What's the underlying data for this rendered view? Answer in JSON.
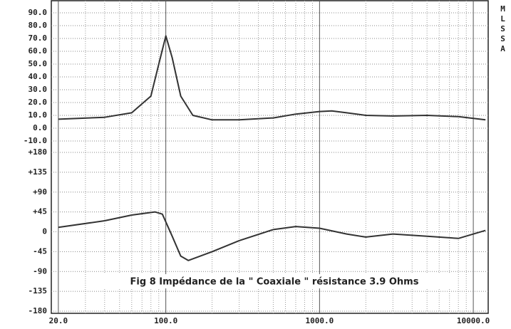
{
  "chart_data": [
    {
      "type": "line",
      "log_x": true,
      "grid": true,
      "side_label": "MLSSA",
      "xlim": [
        18,
        12500
      ],
      "xticks": [
        20,
        100,
        1000,
        10000
      ],
      "xminorticks": [
        30,
        40,
        50,
        60,
        70,
        80,
        90,
        200,
        300,
        400,
        500,
        600,
        700,
        800,
        900,
        2000,
        3000,
        4000,
        5000,
        6000,
        7000,
        8000,
        9000
      ],
      "ylim": [
        -10,
        100
      ],
      "yticks": [
        {
          "value": 90,
          "label": "90.0"
        },
        {
          "value": 80,
          "label": "80.0"
        },
        {
          "value": 70,
          "label": "70.0"
        },
        {
          "value": 60,
          "label": "60.0"
        },
        {
          "value": 50,
          "label": "50.0"
        },
        {
          "value": 40,
          "label": "40.0"
        },
        {
          "value": 30,
          "label": "30.0"
        },
        {
          "value": 20,
          "label": "20.0"
        },
        {
          "value": 10,
          "label": "10.0"
        },
        {
          "value": 0,
          "label": "0.0"
        },
        {
          "value": -10,
          "label": "-10.0"
        }
      ],
      "x": [
        20,
        40,
        60,
        80,
        90,
        100,
        110,
        125,
        150,
        200,
        300,
        500,
        700,
        1000,
        1200,
        1500,
        2000,
        3000,
        5000,
        8000,
        12000
      ],
      "series": [
        {
          "color": "#333333",
          "values": [
            7,
            8.5,
            12,
            25,
            50,
            72,
            55,
            25,
            10,
            6.5,
            6.5,
            8,
            11,
            13,
            13.5,
            12,
            10,
            9.5,
            10,
            9,
            6.5
          ]
        }
      ]
    },
    {
      "type": "line",
      "log_x": true,
      "grid": true,
      "annotation": "Fig 8 Impédance de la \" Coaxiale \" résistance 3.9 Ohms",
      "xlim": [
        18,
        12500
      ],
      "xticks": [
        {
          "value": 20,
          "label": "20.0"
        },
        {
          "value": 100,
          "label": "100.0"
        },
        {
          "value": 1000,
          "label": "1000.0"
        },
        {
          "value": 10000,
          "label": "10000.0"
        }
      ],
      "xminorticks": [
        30,
        40,
        50,
        60,
        70,
        80,
        90,
        200,
        300,
        400,
        500,
        600,
        700,
        800,
        900,
        2000,
        3000,
        4000,
        5000,
        6000,
        7000,
        8000,
        9000
      ],
      "ylim": [
        -180,
        180
      ],
      "yticks": [
        {
          "value": 180,
          "label": "+180"
        },
        {
          "value": 135,
          "label": "+135"
        },
        {
          "value": 90,
          "label": "+90"
        },
        {
          "value": 45,
          "label": "+45"
        },
        0,
        -45,
        -90,
        -135,
        -180
      ],
      "x": [
        20,
        40,
        60,
        85,
        95,
        110,
        125,
        140,
        200,
        300,
        500,
        700,
        1000,
        1500,
        2000,
        3000,
        5000,
        8000,
        12000
      ],
      "series": [
        {
          "color": "#333333",
          "values": [
            10,
            25,
            38,
            45,
            40,
            -10,
            -55,
            -65,
            -45,
            -20,
            5,
            12,
            8,
            -5,
            -12,
            -5,
            -10,
            -15,
            3
          ]
        }
      ]
    }
  ]
}
